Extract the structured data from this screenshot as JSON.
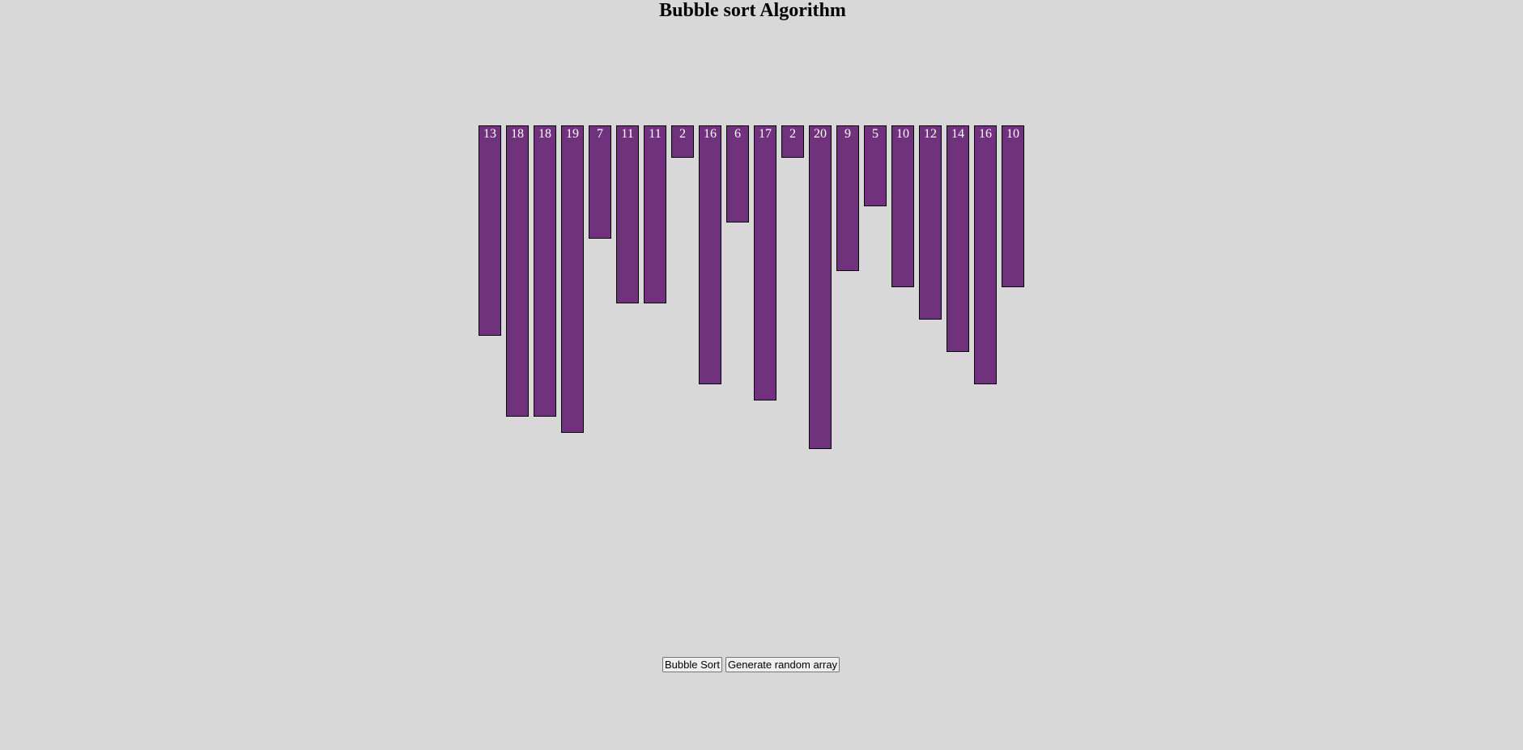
{
  "header": {
    "title": "Bubble sort Algorithm"
  },
  "array": {
    "values": [
      13,
      18,
      18,
      19,
      7,
      11,
      11,
      2,
      16,
      6,
      17,
      2,
      20,
      9,
      5,
      10,
      12,
      14,
      16,
      10
    ],
    "bar_color": "#70317d",
    "label_color": "#ffffff"
  },
  "controls": {
    "bubble_sort_label": "Bubble Sort",
    "generate_label": "Generate random array"
  }
}
